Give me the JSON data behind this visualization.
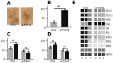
{
  "panel_A": {
    "label": "A",
    "label_left": "CTG",
    "label_right": "shP3H1",
    "bg_color": "#c8956e"
  },
  "panel_B": {
    "label": "B",
    "categories": [
      "CTG",
      "shP3H1"
    ],
    "values": [
      28,
      90
    ],
    "errors": [
      5,
      7
    ],
    "bar_colors": [
      "#aaaaaa",
      "#111111"
    ],
    "significance": "**",
    "ylim": [
      0,
      115
    ]
  },
  "panel_C": {
    "label": "C",
    "group1_values": [
      60,
      80
    ],
    "group2_values": [
      45,
      35
    ],
    "group1_errors": [
      6,
      8
    ],
    "group2_errors": [
      5,
      5
    ],
    "bar_colors": [
      "#aaaaaa",
      "#111111"
    ],
    "sig1": "ns",
    "sig2": "ns",
    "ylim": [
      0,
      115
    ]
  },
  "panel_D": {
    "label": "D",
    "group1_values": [
      65,
      78
    ],
    "group2_values": [
      50,
      42
    ],
    "group1_errors": [
      7,
      8
    ],
    "group2_errors": [
      5,
      5
    ],
    "bar_colors": [
      "#aaaaaa",
      "#111111"
    ],
    "sig1": "ns",
    "sig2": "ns",
    "ylim": [
      0,
      115
    ]
  },
  "panel_E": {
    "label": "E",
    "n_lanes": 6,
    "n_rows": 11,
    "group_left_label": "CTG",
    "group_right_label": "shP3H1",
    "row_labels": [
      "CXCR4",
      "CXCL12",
      "CDH2",
      "CDH1",
      "VIM",
      "FN1",
      "ACTA2",
      "MMP2",
      "MMP9",
      "",
      "GAPDH"
    ],
    "lane_numbers": [
      "1",
      "2",
      "3",
      "4",
      "5",
      "6"
    ],
    "band_intensities": [
      [
        0.55,
        0.5,
        0.3,
        0.28,
        0.25,
        0.22
      ],
      [
        0.5,
        0.48,
        0.25,
        0.22,
        0.2,
        0.18
      ],
      [
        0.52,
        0.5,
        0.28,
        0.25,
        0.22,
        0.2
      ],
      [
        0.2,
        0.22,
        0.5,
        0.52,
        0.55,
        0.58
      ],
      [
        0.55,
        0.52,
        0.2,
        0.18,
        0.15,
        0.12
      ],
      [
        0.5,
        0.48,
        0.18,
        0.15,
        0.12,
        0.1
      ],
      [
        0.52,
        0.5,
        0.22,
        0.2,
        0.15,
        0.12
      ],
      [
        0.5,
        0.48,
        0.1,
        0.08,
        0.06,
        0.05
      ],
      [
        0.45,
        0.42,
        0.08,
        0.06,
        0.05,
        0.04
      ],
      [
        0.3,
        0.3,
        0.3,
        0.3,
        0.3,
        0.3
      ],
      [
        0.42,
        0.4,
        0.4,
        0.38,
        0.42,
        0.4
      ]
    ]
  },
  "background_color": "#ffffff"
}
